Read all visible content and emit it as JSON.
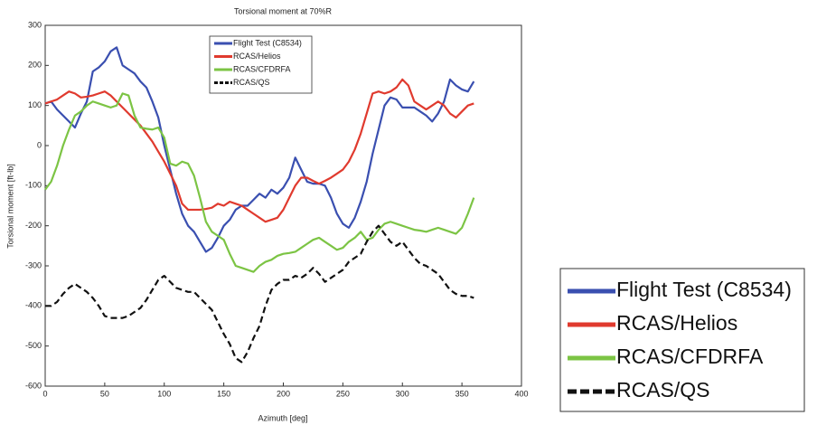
{
  "chart_data": {
    "type": "line",
    "title": "Torsional moment at 70%R",
    "x_label": "Azimuth [deg]",
    "y_label": "Torsional moment [ft-lb]",
    "x": [
      0,
      5,
      10,
      15,
      20,
      25,
      30,
      35,
      40,
      45,
      50,
      55,
      60,
      65,
      70,
      75,
      80,
      85,
      90,
      95,
      100,
      105,
      110,
      115,
      120,
      125,
      130,
      135,
      140,
      145,
      150,
      155,
      160,
      165,
      170,
      175,
      180,
      185,
      190,
      195,
      200,
      205,
      210,
      215,
      220,
      225,
      230,
      235,
      240,
      245,
      250,
      255,
      260,
      265,
      270,
      275,
      280,
      285,
      290,
      295,
      300,
      305,
      310,
      315,
      320,
      325,
      330,
      335,
      340,
      345,
      350,
      355,
      360
    ],
    "xlim": [
      0,
      400
    ],
    "xticks": [
      0,
      50,
      100,
      150,
      200,
      250,
      300,
      350,
      400
    ],
    "ylim": [
      -600,
      300
    ],
    "yticks": [
      -600,
      -500,
      -400,
      -300,
      -200,
      -100,
      0,
      100,
      200,
      300
    ],
    "grid": false,
    "series": [
      {
        "name": "Flight Test (C8534)",
        "color": "#3a4fb0",
        "dashed": false,
        "values": [
          105,
          110,
          90,
          75,
          60,
          45,
          80,
          110,
          185,
          195,
          210,
          235,
          245,
          200,
          190,
          180,
          160,
          145,
          110,
          70,
          0,
          -60,
          -120,
          -170,
          -200,
          -215,
          -240,
          -265,
          -255,
          -230,
          -200,
          -185,
          -160,
          -150,
          -150,
          -135,
          -120,
          -130,
          -110,
          -120,
          -105,
          -80,
          -30,
          -60,
          -90,
          -95,
          -95,
          -100,
          -130,
          -170,
          -195,
          -205,
          -180,
          -140,
          -90,
          -20,
          40,
          100,
          120,
          115,
          95,
          95,
          95,
          85,
          75,
          60,
          80,
          110,
          165,
          150,
          140,
          135,
          160
        ]
      },
      {
        "name": "RCAS/Helios",
        "color": "#e03a2e",
        "dashed": false,
        "values": [
          105,
          110,
          115,
          125,
          135,
          130,
          120,
          122,
          125,
          130,
          135,
          125,
          110,
          95,
          80,
          65,
          50,
          30,
          10,
          -15,
          -40,
          -70,
          -100,
          -145,
          -160,
          -160,
          -160,
          -158,
          -155,
          -145,
          -150,
          -140,
          -145,
          -150,
          -160,
          -170,
          -180,
          -190,
          -185,
          -180,
          -160,
          -130,
          -100,
          -80,
          -80,
          -88,
          -95,
          -88,
          -80,
          -70,
          -60,
          -40,
          -10,
          30,
          80,
          130,
          135,
          130,
          135,
          145,
          165,
          150,
          110,
          100,
          90,
          100,
          110,
          100,
          80,
          70,
          85,
          100,
          105
        ]
      },
      {
        "name": "RCAS/CFDRFA",
        "color": "#7cc444",
        "dashed": false,
        "values": [
          -110,
          -90,
          -50,
          0,
          40,
          75,
          85,
          100,
          110,
          105,
          100,
          95,
          100,
          130,
          125,
          75,
          45,
          42,
          40,
          45,
          20,
          -45,
          -50,
          -40,
          -45,
          -75,
          -130,
          -190,
          -215,
          -225,
          -235,
          -270,
          -300,
          -305,
          -310,
          -315,
          -300,
          -290,
          -285,
          -275,
          -270,
          -268,
          -265,
          -255,
          -245,
          -235,
          -230,
          -240,
          -250,
          -260,
          -255,
          -240,
          -230,
          -215,
          -235,
          -230,
          -210,
          -195,
          -190,
          -195,
          -200,
          -205,
          -210,
          -212,
          -215,
          -210,
          -205,
          -210,
          -215,
          -220,
          -205,
          -170,
          -130
        ]
      },
      {
        "name": "RCAS/QS",
        "color": "#111111",
        "dashed": true,
        "values": [
          -400,
          -400,
          -390,
          -370,
          -355,
          -345,
          -355,
          -365,
          -380,
          -400,
          -425,
          -430,
          -430,
          -430,
          -425,
          -415,
          -405,
          -385,
          -360,
          -335,
          -325,
          -340,
          -355,
          -360,
          -365,
          -365,
          -380,
          -395,
          -410,
          -440,
          -470,
          -495,
          -530,
          -540,
          -515,
          -480,
          -450,
          -400,
          -360,
          -345,
          -335,
          -335,
          -325,
          -330,
          -320,
          -305,
          -320,
          -340,
          -330,
          -320,
          -310,
          -290,
          -280,
          -270,
          -240,
          -215,
          -200,
          -220,
          -240,
          -250,
          -240,
          -260,
          -280,
          -295,
          -300,
          -310,
          -320,
          -340,
          -360,
          -370,
          -375,
          -375,
          -380
        ]
      }
    ]
  }
}
